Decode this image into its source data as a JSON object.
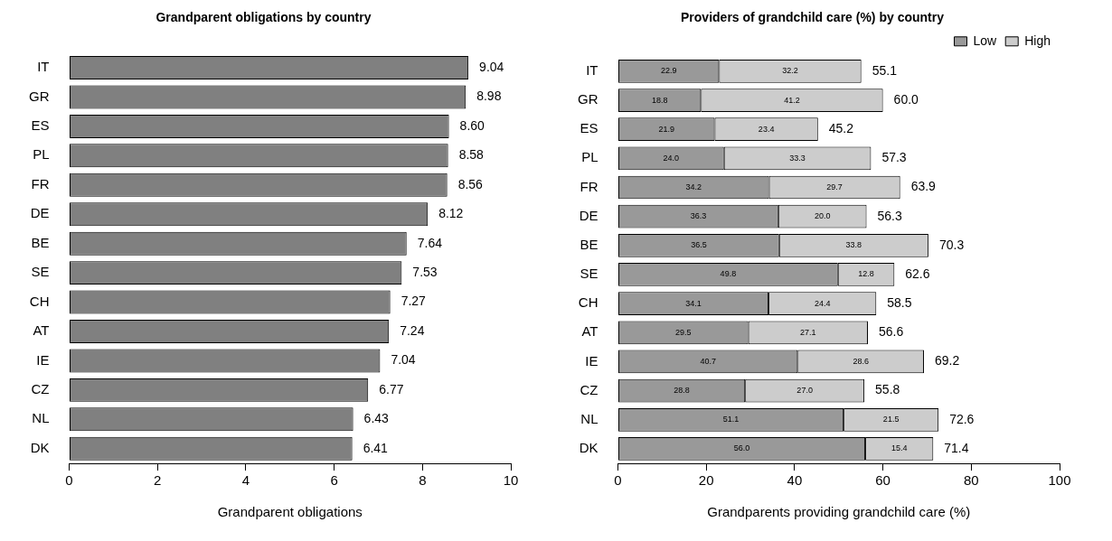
{
  "chart_data": [
    {
      "type": "bar",
      "title": "Grandparent obligations by country",
      "xlabel": "Grandparent obligations",
      "orientation": "horizontal",
      "categories": [
        "IT",
        "GR",
        "ES",
        "PL",
        "FR",
        "DE",
        "BE",
        "SE",
        "CH",
        "AT",
        "IE",
        "CZ",
        "NL",
        "DK"
      ],
      "values": [
        9.04,
        8.98,
        8.6,
        8.58,
        8.56,
        8.12,
        7.64,
        7.53,
        7.27,
        7.24,
        7.04,
        6.77,
        6.43,
        6.41
      ],
      "value_labels": [
        "9.04",
        "8.98",
        "8.60",
        "8.58",
        "8.56",
        "8.12",
        "7.64",
        "7.53",
        "7.27",
        "7.24",
        "7.04",
        "6.77",
        "6.43",
        "6.41"
      ],
      "color": "#808080",
      "xlim": [
        0,
        10
      ],
      "xticks": [
        0,
        2,
        4,
        6,
        8,
        10
      ]
    },
    {
      "type": "bar",
      "title": "Providers of grandchild care (%) by country",
      "xlabel": "Grandparents providing grandchild care (%)",
      "orientation": "horizontal",
      "stacked": true,
      "categories": [
        "IT",
        "GR",
        "ES",
        "PL",
        "FR",
        "DE",
        "BE",
        "SE",
        "CH",
        "AT",
        "IE",
        "CZ",
        "NL",
        "DK"
      ],
      "series": [
        {
          "name": "Low",
          "color": "#999999",
          "values": [
            22.9,
            18.8,
            21.9,
            24.0,
            34.2,
            36.3,
            36.5,
            49.8,
            34.1,
            29.5,
            40.7,
            28.8,
            51.1,
            56.0
          ],
          "value_labels": [
            "22.9",
            "18.8",
            "21.9",
            "24.0",
            "34.2",
            "36.3",
            "36.5",
            "49.8",
            "34.1",
            "29.5",
            "40.7",
            "28.8",
            "51.1",
            "56.0"
          ]
        },
        {
          "name": "High",
          "color": "#cccccc",
          "values": [
            32.2,
            41.2,
            23.4,
            33.3,
            29.7,
            20.0,
            33.8,
            12.8,
            24.4,
            27.1,
            28.6,
            27.0,
            21.5,
            15.4
          ],
          "value_labels": [
            "32.2",
            "41.2",
            "23.4",
            "33.3",
            "29.7",
            "20.0",
            "33.8",
            "12.8",
            "24.4",
            "27.1",
            "28.6",
            "27.0",
            "21.5",
            "15.4"
          ]
        }
      ],
      "totals": [
        "55.1",
        "60.0",
        "45.2",
        "57.3",
        "63.9",
        "56.3",
        "70.3",
        "62.6",
        "58.5",
        "56.6",
        "69.2",
        "55.8",
        "72.6",
        "71.4"
      ],
      "legend": "top right",
      "xlim": [
        0,
        100
      ],
      "xticks": [
        0,
        20,
        40,
        60,
        80,
        100
      ]
    }
  ]
}
